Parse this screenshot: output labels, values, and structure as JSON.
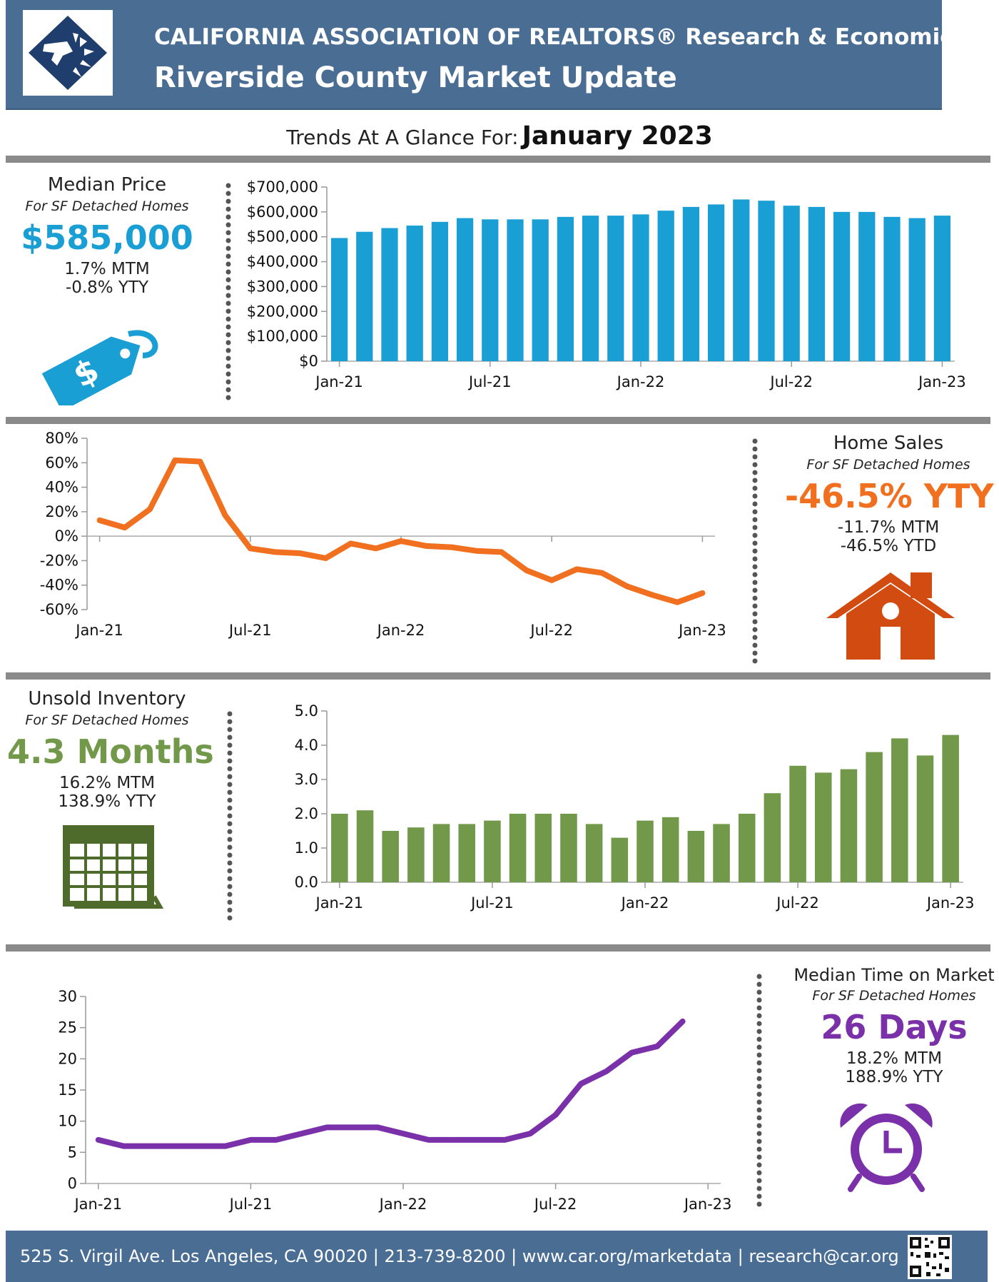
{
  "header": {
    "line1": "CALIFORNIA ASSOCIATION OF REALTORS® Research & Economics",
    "line2": "Riverside County Market Update"
  },
  "trend": {
    "label": "Trends At A Glance For:",
    "date": "January 2023"
  },
  "median_price": {
    "title": "Median Price",
    "subtitle": "For SF Detached Homes",
    "value": "$585,000",
    "mtm": "1.7% MTM",
    "ytd": "-0.8% YTY",
    "icon": "price-tag-icon",
    "color": "#1a9fd4"
  },
  "home_sales": {
    "title": "Home Sales",
    "subtitle": "For SF Detached Homes",
    "value": "-46.5% YTY",
    "mtm": "-11.7% MTM",
    "ytd": "-46.5% YTD",
    "icon": "house-icon",
    "color": "#f07020"
  },
  "inventory": {
    "title": "Unsold Inventory",
    "subtitle": "For SF Detached Homes",
    "value": "4.3 Months",
    "mtm": "16.2% MTM",
    "ytd": "138.9% YTY",
    "icon": "calendar-icon",
    "color": "#72994a"
  },
  "time_on_market": {
    "title": "Median Time on Market",
    "subtitle": "For SF Detached Homes",
    "value": "26 Days",
    "mtm": "18.2% MTM",
    "ytd": "188.9% YTY",
    "icon": "alarm-clock-icon",
    "color": "#7a30a8"
  },
  "footer": {
    "text": "525 S. Virgil Ave. Los Angeles, CA 90020 | 213-739-8200 | www.car.org/marketdata | research@car.org",
    "qr": "qr-code-icon"
  },
  "chart_data": [
    {
      "type": "bar",
      "categories": [
        "Jan-21",
        "Feb-21",
        "Mar-21",
        "Apr-21",
        "May-21",
        "Jun-21",
        "Jul-21",
        "Aug-21",
        "Sep-21",
        "Oct-21",
        "Nov-21",
        "Dec-21",
        "Jan-22",
        "Feb-22",
        "Mar-22",
        "Apr-22",
        "May-22",
        "Jun-22",
        "Jul-22",
        "Aug-22",
        "Sep-22",
        "Oct-22",
        "Nov-22",
        "Dec-22",
        "Jan-23"
      ],
      "values": [
        495000,
        520000,
        535000,
        545000,
        560000,
        575000,
        570000,
        570000,
        570000,
        580000,
        585000,
        585000,
        590000,
        605000,
        620000,
        630000,
        650000,
        645000,
        625000,
        620000,
        600000,
        600000,
        580000,
        575000,
        585000
      ],
      "xticks": [
        "Jan-21",
        "Jul-21",
        "Jan-22",
        "Jul-22",
        "Jan-23"
      ],
      "yticks": [
        "$0",
        "$100,000",
        "$200,000",
        "$300,000",
        "$400,000",
        "$500,000",
        "$600,000",
        "$700,000"
      ],
      "ylim": [
        0,
        700000
      ],
      "color": "#1a9fd4"
    },
    {
      "type": "line",
      "categories": [
        "Jan-21",
        "Feb-21",
        "Mar-21",
        "Apr-21",
        "May-21",
        "Jun-21",
        "Jul-21",
        "Aug-21",
        "Sep-21",
        "Oct-21",
        "Nov-21",
        "Dec-21",
        "Jan-22",
        "Feb-22",
        "Mar-22",
        "Apr-22",
        "May-22",
        "Jun-22",
        "Jul-22",
        "Aug-22",
        "Sep-22",
        "Oct-22",
        "Nov-22",
        "Dec-22",
        "Jan-23"
      ],
      "values": [
        13,
        7,
        22,
        62,
        61,
        17,
        -10,
        -13,
        -14,
        -18,
        -6,
        -10,
        -4,
        -8,
        -9,
        -12,
        -13,
        -28,
        -36,
        -27,
        -30,
        -41,
        -48,
        -54,
        -46.5
      ],
      "xticks": [
        "Jan-21",
        "Jul-21",
        "Jan-22",
        "Jul-22",
        "Jan-23"
      ],
      "yticks": [
        "-60%",
        "-40%",
        "-20%",
        "0%",
        "20%",
        "40%",
        "60%",
        "80%"
      ],
      "ylim": [
        -60,
        80
      ],
      "color": "#f07020"
    },
    {
      "type": "bar",
      "categories": [
        "Jan-21",
        "Feb-21",
        "Mar-21",
        "Apr-21",
        "May-21",
        "Jun-21",
        "Jul-21",
        "Aug-21",
        "Sep-21",
        "Oct-21",
        "Nov-21",
        "Dec-21",
        "Jan-22",
        "Feb-22",
        "Mar-22",
        "Apr-22",
        "May-22",
        "Jun-22",
        "Jul-22",
        "Aug-22",
        "Sep-22",
        "Oct-22",
        "Nov-22",
        "Dec-22",
        "Jan-23"
      ],
      "values": [
        2.0,
        2.1,
        1.5,
        1.6,
        1.7,
        1.7,
        1.8,
        2.0,
        2.0,
        2.0,
        1.7,
        1.3,
        1.8,
        1.9,
        1.5,
        1.7,
        2.0,
        2.6,
        3.4,
        3.2,
        3.3,
        3.8,
        4.2,
        3.7,
        4.3
      ],
      "xticks": [
        "Jan-21",
        "Jul-21",
        "Jan-22",
        "Jul-22",
        "Jan-23"
      ],
      "yticks": [
        "0.0",
        "1.0",
        "2.0",
        "3.0",
        "4.0",
        "5.0"
      ],
      "ylim": [
        0,
        5
      ],
      "color": "#72994a"
    },
    {
      "type": "line",
      "categories": [
        "Jan-21",
        "Feb-21",
        "Mar-21",
        "Apr-21",
        "May-21",
        "Jun-21",
        "Jul-21",
        "Aug-21",
        "Sep-21",
        "Oct-21",
        "Nov-21",
        "Dec-21",
        "Jan-22",
        "Feb-22",
        "Mar-22",
        "Apr-22",
        "May-22",
        "Jun-22",
        "Jul-22",
        "Aug-22",
        "Sep-22",
        "Oct-22",
        "Nov-22",
        "Dec-22",
        "Jan-23"
      ],
      "values": [
        7,
        6,
        6,
        6,
        6,
        6,
        7,
        7,
        8,
        9,
        9,
        9,
        8,
        7,
        7,
        7,
        7,
        8,
        11,
        16,
        18,
        21,
        22,
        26,
        null
      ],
      "xticks": [
        "Jan-21",
        "Jul-21",
        "Jan-22",
        "Jul-22",
        "Jan-23"
      ],
      "yticks": [
        "0",
        "5",
        "10",
        "15",
        "20",
        "25",
        "30"
      ],
      "ylim": [
        0,
        30
      ],
      "color": "#7a30a8"
    }
  ]
}
